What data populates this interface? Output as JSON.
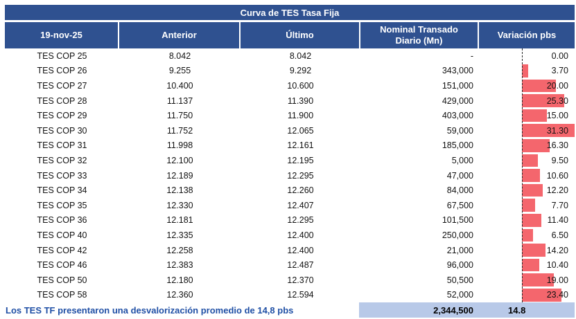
{
  "colors": {
    "header-blue": "#2f5190",
    "bar-red": "#f4666d",
    "band-blue": "#b8c9e8",
    "note-blue": "#1f4fa5"
  },
  "chart_data": {
    "type": "table",
    "title": "Curva de TES Tasa Fija",
    "header": {
      "date": "19-nov-25",
      "anterior": "Anterior",
      "ultimo": "Último",
      "nominal_line1": "Nominal Transado",
      "nominal_line2": "Diario (Mn)",
      "variacion": "Variación pbs"
    },
    "bar": {
      "series_name": "Variación pbs",
      "orientation": "horizontal",
      "color": "#f4666d",
      "axis_min": 0,
      "axis_max": 31.3,
      "baseline": "dashed vertical line at zero"
    },
    "rows": [
      {
        "name": "TES COP 25",
        "anterior": "8.042",
        "ultimo": "8.042",
        "nominal": "-",
        "variacion": "0.00",
        "variacion_value": 0.0
      },
      {
        "name": "TES COP 26",
        "anterior": "9.255",
        "ultimo": "9.292",
        "nominal": "343,000",
        "variacion": "3.70",
        "variacion_value": 3.7
      },
      {
        "name": "TES COP 27",
        "anterior": "10.400",
        "ultimo": "10.600",
        "nominal": "151,000",
        "variacion": "20.00",
        "variacion_value": 20.0
      },
      {
        "name": "TES COP 28",
        "anterior": "11.137",
        "ultimo": "11.390",
        "nominal": "429,000",
        "variacion": "25.30",
        "variacion_value": 25.3
      },
      {
        "name": "TES COP 29",
        "anterior": "11.750",
        "ultimo": "11.900",
        "nominal": "403,000",
        "variacion": "15.00",
        "variacion_value": 15.0
      },
      {
        "name": "TES COP 30",
        "anterior": "11.752",
        "ultimo": "12.065",
        "nominal": "59,000",
        "variacion": "31.30",
        "variacion_value": 31.3
      },
      {
        "name": "TES COP 31",
        "anterior": "11.998",
        "ultimo": "12.161",
        "nominal": "185,000",
        "variacion": "16.30",
        "variacion_value": 16.3
      },
      {
        "name": "TES COP 32",
        "anterior": "12.100",
        "ultimo": "12.195",
        "nominal": "5,000",
        "variacion": "9.50",
        "variacion_value": 9.5
      },
      {
        "name": "TES COP 33",
        "anterior": "12.189",
        "ultimo": "12.295",
        "nominal": "47,000",
        "variacion": "10.60",
        "variacion_value": 10.6
      },
      {
        "name": "TES COP 34",
        "anterior": "12.138",
        "ultimo": "12.260",
        "nominal": "84,000",
        "variacion": "12.20",
        "variacion_value": 12.2
      },
      {
        "name": "TES COP 35",
        "anterior": "12.330",
        "ultimo": "12.407",
        "nominal": "67,500",
        "variacion": "7.70",
        "variacion_value": 7.7
      },
      {
        "name": "TES COP 36",
        "anterior": "12.181",
        "ultimo": "12.295",
        "nominal": "101,500",
        "variacion": "11.40",
        "variacion_value": 11.4
      },
      {
        "name": "TES COP 40",
        "anterior": "12.335",
        "ultimo": "12.400",
        "nominal": "250,000",
        "variacion": "6.50",
        "variacion_value": 6.5
      },
      {
        "name": "TES COP 42",
        "anterior": "12.258",
        "ultimo": "12.400",
        "nominal": "21,000",
        "variacion": "14.20",
        "variacion_value": 14.2
      },
      {
        "name": "TES COP 46",
        "anterior": "12.383",
        "ultimo": "12.487",
        "nominal": "96,000",
        "variacion": "10.40",
        "variacion_value": 10.4
      },
      {
        "name": "TES COP 50",
        "anterior": "12.180",
        "ultimo": "12.370",
        "nominal": "50,500",
        "variacion": "19.00",
        "variacion_value": 19.0
      },
      {
        "name": "TES COP 58",
        "anterior": "12.360",
        "ultimo": "12.594",
        "nominal": "52,000",
        "variacion": "23.40",
        "variacion_value": 23.4
      }
    ],
    "footer": {
      "note": "Los TES TF presentaron una desvalorización promedio de 14,8 pbs",
      "nominal_total": "2,344,500",
      "variacion_promedio": "14.8"
    }
  }
}
